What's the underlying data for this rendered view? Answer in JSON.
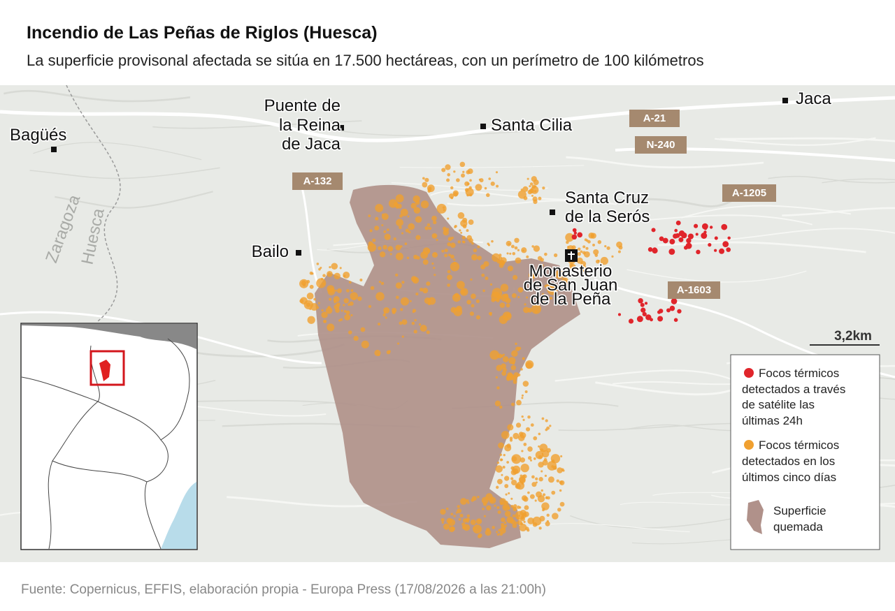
{
  "header": {
    "title": "Incendio de Las Peñas de Riglos (Huesca)",
    "subtitle": "La superficie provisonal afectada se sitúa en 17.500 hectáreas, con un perímetro de 100 kilómetros"
  },
  "map": {
    "places": [
      {
        "lines": [
          "Bagüés"
        ]
      },
      {
        "lines": [
          "Puente de",
          "la Reina",
          "de Jaca"
        ]
      },
      {
        "lines": [
          "Santa Cilia"
        ]
      },
      {
        "lines": [
          "Jaca"
        ]
      },
      {
        "lines": [
          "Santa Cruz",
          "de la Serós"
        ]
      },
      {
        "lines": [
          "Bailo"
        ]
      },
      {
        "lines": [
          "Monasterio",
          "de San Juan",
          "de la Peña"
        ]
      }
    ],
    "roads": [
      "A-21",
      "N-240",
      "A-132",
      "A-1205",
      "A-1603"
    ],
    "regions": [
      "Zaragoza",
      "Huesca"
    ],
    "scale": "3,2km"
  },
  "legend": {
    "items": [
      {
        "lines": [
          "Focos térmicos",
          "detectados a través",
          "de satélite las",
          "últimas 24h"
        ]
      },
      {
        "lines": [
          "Focos térmicos",
          "detectados en los",
          "últimos cinco días"
        ]
      },
      {
        "lines": [
          "Superficie",
          "quemada"
        ]
      }
    ]
  },
  "footer": {
    "source": "Fuente: Copernicus, EFFIS, elaboración propia - Europa Press (17/08/2026 a las 21:00h)"
  }
}
